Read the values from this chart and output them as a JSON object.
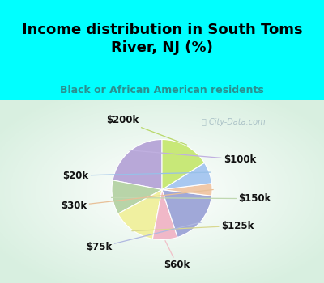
{
  "title": "Income distribution in South Toms\nRiver, NJ (%)",
  "subtitle": "Black or African American residents",
  "title_color": "#000000",
  "subtitle_color": "#2a9090",
  "background_cyan": "#00ffff",
  "watermark": "ⓘ City-Data.com",
  "watermark_color": "#a0b8c0",
  "labels": [
    "$100k",
    "$150k",
    "$125k",
    "$60k",
    "$75k",
    "$30k",
    "$20k",
    "$200k"
  ],
  "values": [
    22,
    11,
    14,
    8,
    18,
    4,
    7,
    16
  ],
  "colors": [
    "#b8a8d8",
    "#b8d4a8",
    "#f0f0a0",
    "#f0b8c8",
    "#a0a8d8",
    "#f0c8a8",
    "#a8c8f0",
    "#c8e878"
  ],
  "title_fontsize": 13,
  "subtitle_fontsize": 9,
  "label_fontsize": 8.5
}
